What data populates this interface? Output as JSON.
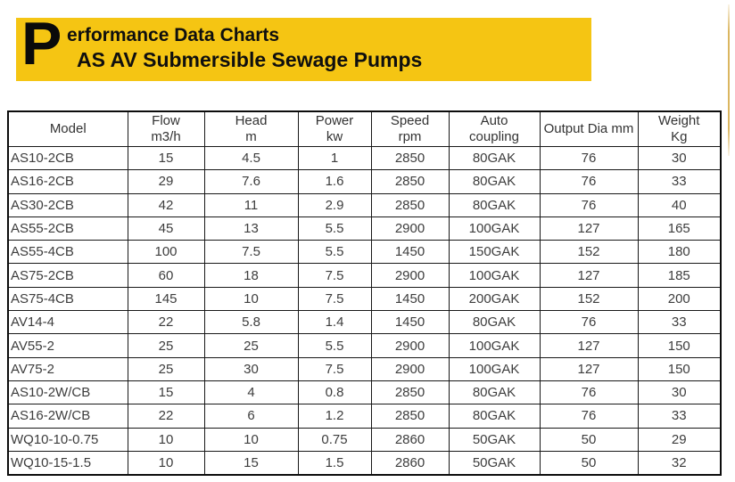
{
  "banner": {
    "drop_cap": "P",
    "title_rest": "erformance Data Charts",
    "subtitle": "AS AV Submersible Sewage Pumps",
    "background_color": "#F5C513"
  },
  "accent_line_color": "#D9B257",
  "table": {
    "columns": [
      {
        "line1": "Model",
        "line2": ""
      },
      {
        "line1": "Flow",
        "line2": "m3/h"
      },
      {
        "line1": "Head",
        "line2": "m"
      },
      {
        "line1": "Power",
        "line2": "kw"
      },
      {
        "line1": "Speed",
        "line2": "rpm"
      },
      {
        "line1": "Auto",
        "line2": "coupling"
      },
      {
        "line1": "Output Dia mm",
        "line2": ""
      },
      {
        "line1": "Weight",
        "line2": "Kg"
      }
    ],
    "rows": [
      [
        "AS10-2CB",
        "15",
        "4.5",
        "1",
        "2850",
        "80GAK",
        "76",
        "30"
      ],
      [
        "AS16-2CB",
        "29",
        "7.6",
        "1.6",
        "2850",
        "80GAK",
        "76",
        "33"
      ],
      [
        "AS30-2CB",
        "42",
        "11",
        "2.9",
        "2850",
        "80GAK",
        "76",
        "40"
      ],
      [
        "AS55-2CB",
        "45",
        "13",
        "5.5",
        "2900",
        "100GAK",
        "127",
        "165"
      ],
      [
        "AS55-4CB",
        "100",
        "7.5",
        "5.5",
        "1450",
        "150GAK",
        "152",
        "180"
      ],
      [
        "AS75-2CB",
        "60",
        "18",
        "7.5",
        "2900",
        "100GAK",
        "127",
        "185"
      ],
      [
        "AS75-4CB",
        "145",
        "10",
        "7.5",
        "1450",
        "200GAK",
        "152",
        "200"
      ],
      [
        "AV14-4",
        "22",
        "5.8",
        "1.4",
        "1450",
        "80GAK",
        "76",
        "33"
      ],
      [
        "AV55-2",
        "25",
        "25",
        "5.5",
        "2900",
        "100GAK",
        "127",
        "150"
      ],
      [
        "AV75-2",
        "25",
        "30",
        "7.5",
        "2900",
        "100GAK",
        "127",
        "150"
      ],
      [
        "AS10-2W/CB",
        "15",
        "4",
        "0.8",
        "2850",
        "80GAK",
        "76",
        "30"
      ],
      [
        "AS16-2W/CB",
        "22",
        "6",
        "1.2",
        "2850",
        "80GAK",
        "76",
        "33"
      ],
      [
        "WQ10-10-0.75",
        "10",
        "10",
        "0.75",
        "2860",
        "50GAK",
        "50",
        "29"
      ],
      [
        "WQ10-15-1.5",
        "10",
        "15",
        "1.5",
        "2860",
        "50GAK",
        "50",
        "32"
      ]
    ]
  }
}
